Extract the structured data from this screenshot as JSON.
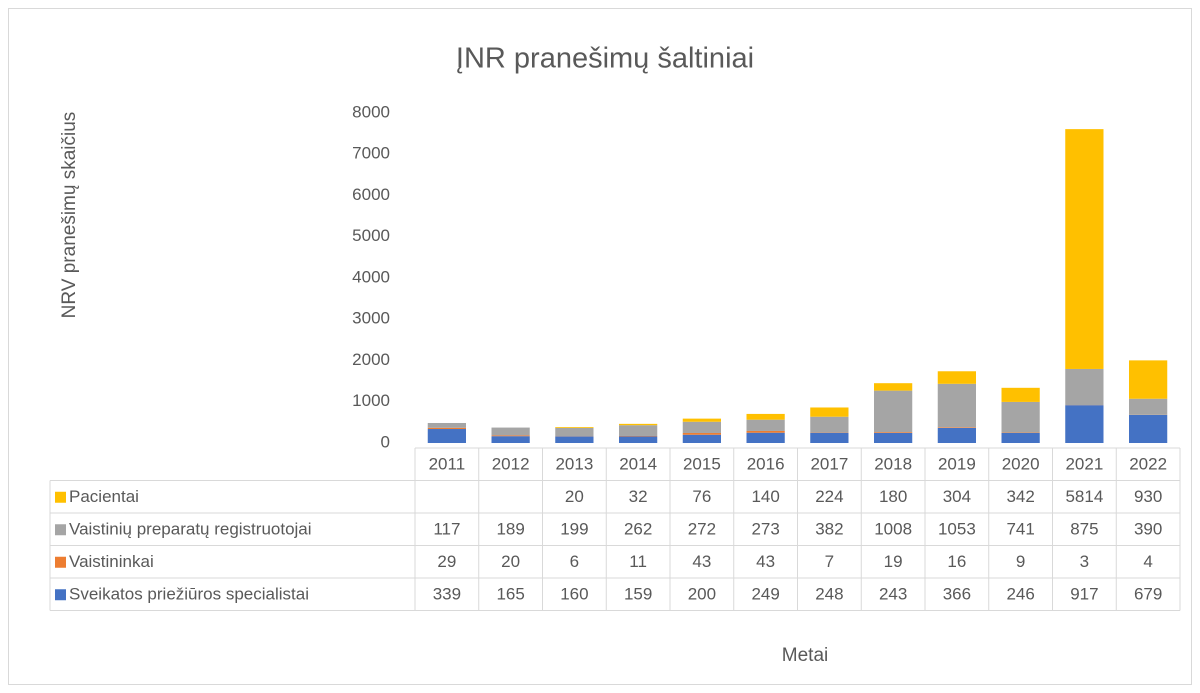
{
  "chart_data": {
    "type": "stacked_bar",
    "title": "ĮNR pranešimų šaltiniai",
    "y_label": "NRV pranešimų skaičius",
    "x_label": "Metai",
    "categories": [
      "2011",
      "2012",
      "2013",
      "2014",
      "2015",
      "2016",
      "2017",
      "2018",
      "2019",
      "2020",
      "2021",
      "2022"
    ],
    "series": [
      {
        "name": "Sveikatos priežiūros specialistai",
        "color": "#4472c4",
        "values": [
          339,
          165,
          160,
          159,
          200,
          249,
          248,
          243,
          366,
          246,
          917,
          679
        ]
      },
      {
        "name": "Vaistininkai",
        "color": "#ed7d31",
        "values": [
          29,
          20,
          6,
          11,
          43,
          43,
          7,
          19,
          16,
          9,
          3,
          4
        ]
      },
      {
        "name": "Vaistinių preparatų registruotojai",
        "color": "#a5a5a5",
        "values": [
          117,
          189,
          199,
          262,
          272,
          273,
          382,
          1008,
          1053,
          741,
          875,
          390
        ]
      },
      {
        "name": "Pacientai",
        "color": "#ffc000",
        "values": [
          null,
          null,
          20,
          32,
          76,
          140,
          224,
          180,
          304,
          342,
          5814,
          930
        ]
      }
    ],
    "ylim": [
      0,
      8000
    ],
    "yticks": [
      0,
      1000,
      2000,
      3000,
      4000,
      5000,
      6000,
      7000,
      8000
    ],
    "grid": false,
    "data_table": true
  }
}
